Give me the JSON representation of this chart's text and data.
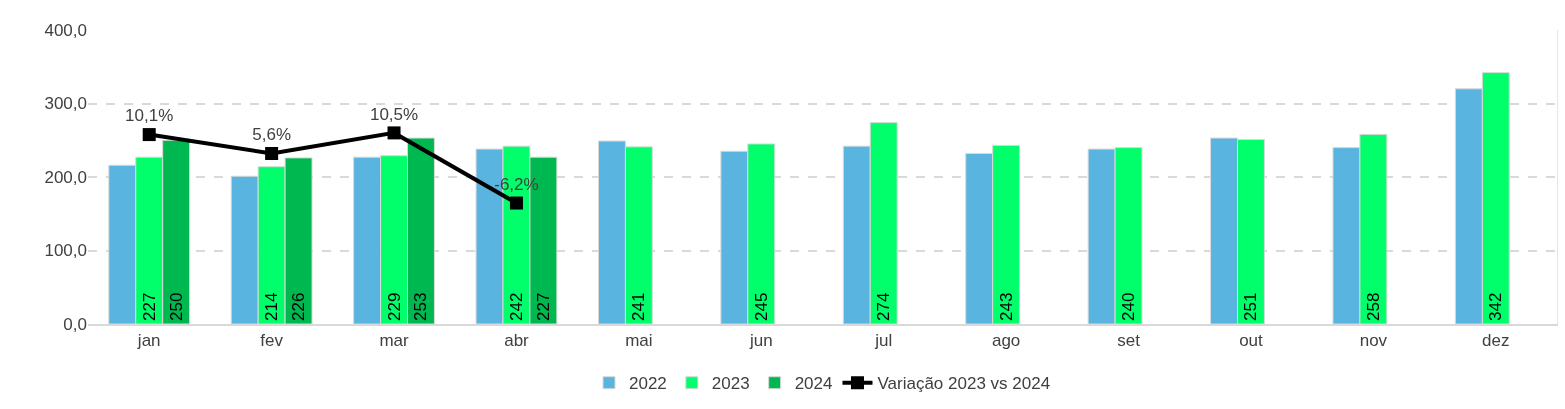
{
  "chart_data": {
    "type": "bar",
    "categories": [
      "jan",
      "fev",
      "mar",
      "abr",
      "mai",
      "jun",
      "jul",
      "ago",
      "set",
      "out",
      "nov",
      "dez"
    ],
    "series": [
      {
        "name": "2022",
        "color": "#5ab4e0",
        "values": [
          216,
          201,
          227,
          238,
          249,
          235,
          242,
          232,
          238,
          253,
          240,
          320
        ]
      },
      {
        "name": "2023",
        "color": "#00ff6a",
        "values": [
          227,
          214,
          229,
          242,
          241,
          245,
          274,
          243,
          240,
          251,
          258,
          342
        ],
        "value_labels": [
          "227",
          "214",
          "229",
          "242",
          "241",
          "245",
          "274",
          "243",
          "240",
          "251",
          "258",
          "342"
        ]
      },
      {
        "name": "2024",
        "color": "#00b850",
        "values": [
          250,
          226,
          253,
          227,
          null,
          null,
          null,
          null,
          null,
          null,
          null,
          null
        ],
        "value_labels": [
          "250",
          "226",
          "253",
          "227",
          null,
          null,
          null,
          null,
          null,
          null,
          null,
          null
        ]
      },
      {
        "name": "Variação 2023 vs 2024",
        "type": "line",
        "axis": "y2",
        "color": "#000000",
        "marker": "square",
        "line_style": "solid",
        "values": [
          10.1,
          5.6,
          10.5,
          -6.2,
          null,
          null,
          null,
          null,
          null,
          null,
          null,
          null
        ],
        "value_labels": [
          "10,1%",
          "5,6%",
          "10,5%",
          "-6,2%",
          null,
          null,
          null,
          null,
          null,
          null,
          null,
          null
        ]
      }
    ],
    "ylim": [
      0,
      400
    ],
    "yticks": [
      {
        "value": 0,
        "label": "0,0"
      },
      {
        "value": 100,
        "label": "100,0"
      },
      {
        "value": 200,
        "label": "200,0"
      },
      {
        "value": 300,
        "label": "300,0"
      },
      {
        "value": 400,
        "label": "400,0"
      }
    ],
    "y2lim": [
      -35,
      35
    ],
    "grid": "y",
    "legend": "bottom"
  }
}
